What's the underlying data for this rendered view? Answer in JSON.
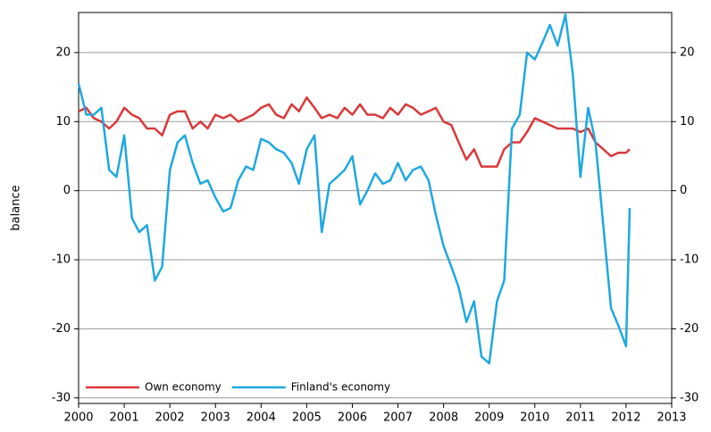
{
  "chart_data": {
    "type": "line",
    "ylabel": "balance",
    "x": [
      2000.0,
      2000.17,
      2000.33,
      2000.5,
      2000.67,
      2000.83,
      2001.0,
      2001.17,
      2001.33,
      2001.5,
      2001.67,
      2001.83,
      2002.0,
      2002.17,
      2002.33,
      2002.5,
      2002.67,
      2002.83,
      2003.0,
      2003.17,
      2003.33,
      2003.5,
      2003.67,
      2003.83,
      2004.0,
      2004.17,
      2004.33,
      2004.5,
      2004.67,
      2004.83,
      2005.0,
      2005.17,
      2005.33,
      2005.5,
      2005.67,
      2005.83,
      2006.0,
      2006.17,
      2006.33,
      2006.5,
      2006.67,
      2006.83,
      2007.0,
      2007.17,
      2007.33,
      2007.5,
      2007.67,
      2007.83,
      2008.0,
      2008.17,
      2008.33,
      2008.5,
      2008.67,
      2008.83,
      2009.0,
      2009.17,
      2009.33,
      2009.5,
      2009.67,
      2009.83,
      2010.0,
      2010.17,
      2010.33,
      2010.5,
      2010.67,
      2010.83,
      2011.0,
      2011.17,
      2011.33,
      2011.5,
      2011.67,
      2011.83,
      2012.0,
      2012.08
    ],
    "series": [
      {
        "name": "Own economy",
        "color": "#d9383a",
        "values": [
          11.5,
          12,
          10.5,
          10,
          9,
          10,
          12,
          11,
          10.5,
          9,
          9,
          8,
          11,
          11.5,
          11.5,
          9,
          10,
          9,
          11,
          10.5,
          11,
          10,
          10.5,
          11,
          12,
          12.5,
          11,
          10.5,
          12.5,
          11.5,
          13.5,
          12,
          10.5,
          11,
          10.5,
          12,
          11,
          12.5,
          11,
          11,
          10.5,
          12,
          11,
          12.5,
          12,
          11,
          11.5,
          12,
          10,
          9.5,
          7,
          4.5,
          6,
          3.5,
          3.5,
          3.5,
          6,
          7,
          7,
          8.5,
          10.5,
          10,
          9.5,
          9,
          9,
          9,
          8.5,
          9,
          7,
          6,
          5,
          5.5,
          5.5,
          6
        ]
      },
      {
        "name": "Finland's economy",
        "color": "#1ea8e0",
        "values": [
          15.5,
          11,
          11,
          12,
          3,
          2,
          8,
          -4,
          -6,
          -5,
          -13,
          -11,
          3,
          7,
          8,
          4,
          1,
          1.5,
          -1,
          -3,
          -2.5,
          1.5,
          3.5,
          3,
          7.5,
          7,
          6,
          5.5,
          4,
          1,
          6,
          8,
          -6,
          1,
          2,
          3,
          5,
          -2,
          0,
          2.5,
          1,
          1.5,
          4,
          1.5,
          3,
          3.5,
          1.5,
          -3.5,
          -8,
          -11,
          -14,
          -19,
          -16,
          -24,
          -25,
          -16,
          -13,
          9,
          11,
          20,
          19,
          21.5,
          24,
          21,
          25.5,
          17,
          2,
          12,
          7,
          -5,
          -17,
          -19.5,
          -22.5,
          -2.5
        ]
      }
    ],
    "xlim": [
      2000,
      2013
    ],
    "xticks": [
      2000,
      2001,
      2002,
      2003,
      2004,
      2005,
      2006,
      2007,
      2008,
      2009,
      2010,
      2011,
      2012,
      2013
    ],
    "ylim": [
      -30.8,
      25.8
    ],
    "yticks": [
      -30,
      -20,
      -10,
      0,
      10,
      20
    ],
    "grid": true,
    "legend": "lower left"
  }
}
